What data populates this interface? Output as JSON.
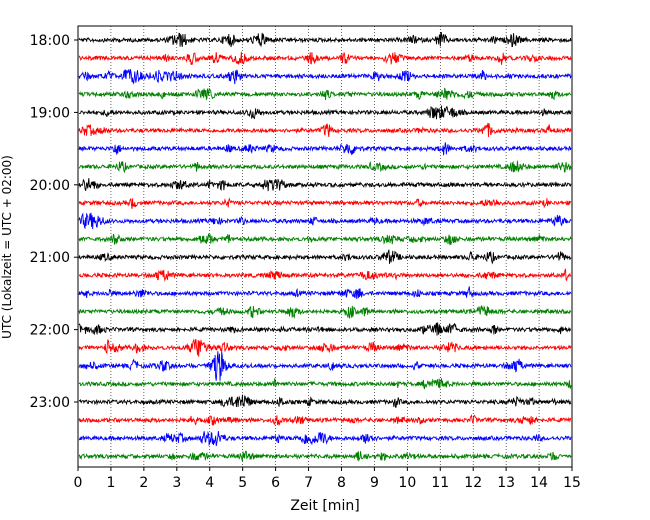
{
  "chart_data": {
    "type": "line",
    "title": "",
    "xlabel": "Zeit  [min]",
    "ylabel": "UTC (Lokalzeit = UTC + 02:00)",
    "xlim": [
      0,
      15
    ],
    "x_ticks": [
      "0",
      "1",
      "2",
      "3",
      "4",
      "5",
      "6",
      "7",
      "8",
      "9",
      "10",
      "11",
      "12",
      "13",
      "14",
      "15"
    ],
    "y_ticks": [
      "18:00",
      "19:00",
      "20:00",
      "21:00",
      "22:00",
      "23:00"
    ],
    "row_start": "18:00",
    "row_interval_minutes": 15,
    "row_count": 24,
    "trace_colors": [
      "#000000",
      "#ff0000",
      "#0000ff",
      "#008000"
    ],
    "grid": "vertical dotted at each minute"
  }
}
